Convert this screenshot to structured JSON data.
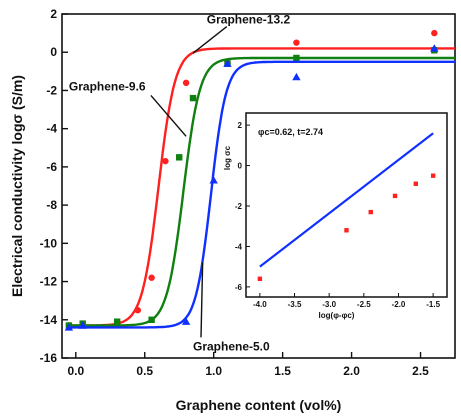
{
  "chart_data": [
    {
      "type": "scatter",
      "xlabel": "Graphene content (vol%)",
      "ylabel": "Electrical conductivity logσ (S/m)",
      "xlim": [
        -0.1,
        2.75
      ],
      "ylim": [
        -16,
        2
      ],
      "xticks": [
        "0.0",
        "0.5",
        "1.0",
        "1.5",
        "2.0",
        "2.5"
      ],
      "xtick_values": [
        0.0,
        0.5,
        1.0,
        1.5,
        2.0,
        2.5
      ],
      "yticks": [
        "2",
        "0",
        "-2",
        "-4",
        "-6",
        "-8",
        "-10",
        "-12",
        "-14",
        "-16"
      ],
      "ytick_values": [
        2,
        0,
        -2,
        -4,
        -6,
        -8,
        -10,
        -12,
        -14,
        -16
      ],
      "grid": false,
      "series": [
        {
          "name": "Graphene-13.2",
          "color": "#ff2020",
          "marker": "circle",
          "points": [
            [
              -0.05,
              -14.3
            ],
            [
              0.05,
              -14.2
            ],
            [
              0.3,
              -14.1
            ],
            [
              0.45,
              -13.5
            ],
            [
              0.55,
              -11.8
            ],
            [
              0.65,
              -5.7
            ],
            [
              0.8,
              -1.6
            ],
            [
              1.1,
              -0.5
            ],
            [
              1.6,
              0.5
            ],
            [
              2.6,
              1.0
            ]
          ],
          "fit": [
            -14.3,
            0.2,
            0.6,
            0.06
          ]
        },
        {
          "name": "Graphene-9.6",
          "color": "#108010",
          "marker": "square",
          "points": [
            [
              -0.05,
              -14.3
            ],
            [
              0.05,
              -14.2
            ],
            [
              0.3,
              -14.1
            ],
            [
              0.55,
              -14.0
            ],
            [
              0.75,
              -5.5
            ],
            [
              0.85,
              -2.4
            ],
            [
              1.1,
              -0.6
            ],
            [
              1.6,
              -0.3
            ],
            [
              2.6,
              0.1
            ]
          ],
          "fit": [
            -14.3,
            -0.3,
            0.78,
            0.06
          ]
        },
        {
          "name": "Graphene-5.0",
          "color": "#1030ff",
          "marker": "triangle",
          "points": [
            [
              -0.05,
              -14.4
            ],
            [
              0.05,
              -14.3
            ],
            [
              0.8,
              -14.1
            ],
            [
              1.0,
              -6.7
            ],
            [
              1.1,
              -0.6
            ],
            [
              1.6,
              -1.3
            ],
            [
              2.6,
              0.2
            ]
          ],
          "fit": [
            -14.4,
            -0.5,
            0.98,
            0.055
          ]
        }
      ],
      "annotations": [
        {
          "text": "Graphene-13.2",
          "x": 0.95,
          "y": 1.5,
          "ax": 0.85,
          "ay": -0.05
        },
        {
          "text": "Graphene-9.6",
          "x": -0.05,
          "y": -2.0,
          "ax": 0.8,
          "ay": -4.4
        },
        {
          "text": "Graphene-5.0",
          "x": 0.85,
          "y": -15.6,
          "ax": 0.92,
          "ay": -11.0
        }
      ]
    },
    {
      "type": "scatter",
      "title": "φc=0.62, t=2.74",
      "xlabel": "log(φ-φc)",
      "ylabel": "log σc",
      "xlim": [
        -4.2,
        -1.3
      ],
      "ylim": [
        -6.5,
        2.6
      ],
      "xticks": [
        "-4.0",
        "-3.5",
        "-3.0",
        "-2.5",
        "-2.0",
        "-1.5"
      ],
      "xtick_values": [
        -4.0,
        -3.5,
        -3.0,
        -2.5,
        -2.0,
        -1.5
      ],
      "yticks": [
        "2",
        "0",
        "-2",
        "-4",
        "-6"
      ],
      "ytick_values": [
        2,
        0,
        -2,
        -4,
        -6
      ],
      "series": [
        {
          "name": "",
          "color": "#ff2020",
          "marker": "square",
          "points": [
            [
              -4.0,
              -5.6
            ],
            [
              -2.75,
              -3.2
            ],
            [
              -2.4,
              -2.3
            ],
            [
              -2.05,
              -1.5
            ],
            [
              -1.75,
              -0.9
            ],
            [
              -1.5,
              -0.5
            ]
          ]
        }
      ],
      "fit_line": {
        "color": "#1030ff",
        "points": [
          [
            -4.0,
            -5.0
          ],
          [
            -1.5,
            1.6
          ]
        ]
      }
    }
  ]
}
